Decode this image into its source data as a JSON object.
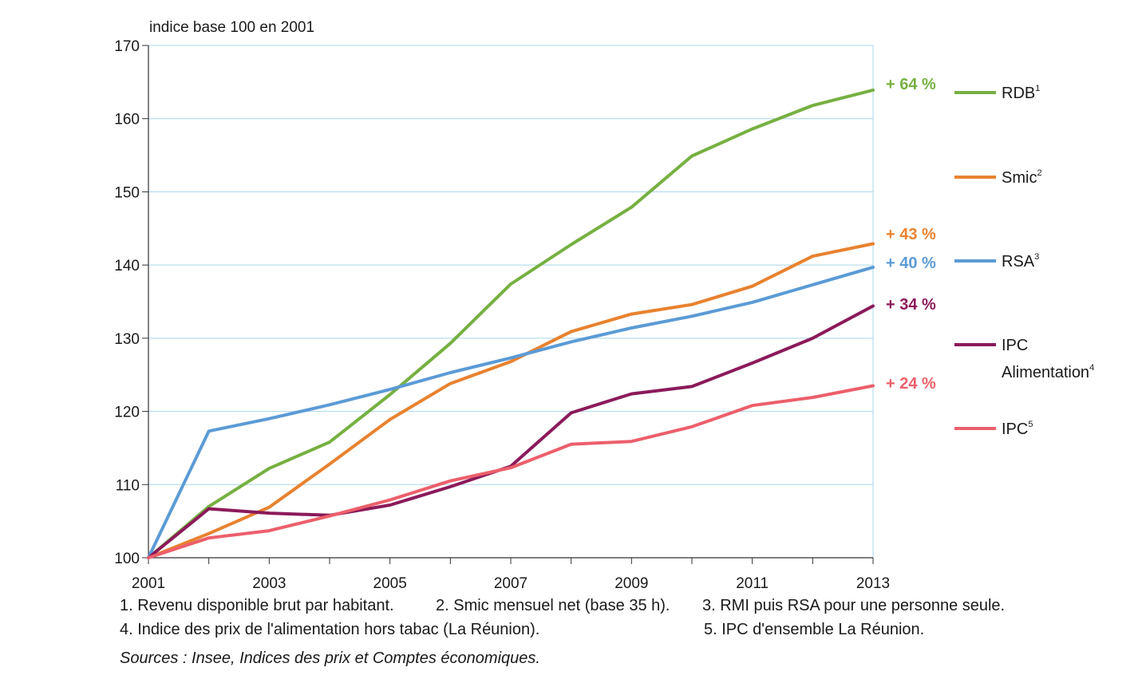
{
  "chart_data": {
    "type": "line",
    "y_unit_label": "indice base 100 en 2001",
    "x": [
      2001,
      2002,
      2003,
      2004,
      2005,
      2006,
      2007,
      2008,
      2009,
      2010,
      2011,
      2012,
      2013
    ],
    "x_tick_labels": [
      "2001",
      "2003",
      "2005",
      "2007",
      "2009",
      "2011",
      "2013"
    ],
    "y_tick_labels": [
      "100",
      "110",
      "120",
      "130",
      "140",
      "150",
      "160",
      "170"
    ],
    "xlim": [
      2001,
      2013
    ],
    "ylim": [
      100,
      170
    ],
    "grid": "horizontal",
    "legend_position": "right",
    "series": [
      {
        "name": "RDB",
        "note_ref": "1",
        "color": "#76b041",
        "end_label": "+ 64 %",
        "values": [
          100,
          107,
          112.2,
          115.8,
          122.3,
          129.3,
          137.4,
          142.8,
          147.9,
          154.9,
          158.6,
          161.8,
          163.9
        ]
      },
      {
        "name": "Smic",
        "note_ref": "2",
        "color": "#e8822f",
        "end_label": "+ 43 %",
        "values": [
          100,
          103.3,
          106.9,
          112.8,
          118.9,
          123.8,
          126.8,
          130.9,
          133.3,
          134.6,
          137.1,
          141.2,
          142.9
        ]
      },
      {
        "name": "RSA",
        "note_ref": "3",
        "color": "#5b9bd5",
        "end_label": "+ 40 %",
        "values": [
          100,
          117.3,
          119,
          120.9,
          123,
          125.3,
          127.3,
          129.5,
          131.4,
          133,
          134.9,
          137.3,
          139.7
        ]
      },
      {
        "name": "IPC Alimentation",
        "name_line1": "IPC",
        "name_line2": "Alimentation",
        "note_ref": "4",
        "color": "#8b1a5a",
        "end_label": "+ 34 %",
        "values": [
          100,
          106.7,
          106.1,
          105.8,
          107.2,
          109.7,
          112.5,
          119.8,
          122.4,
          123.4,
          126.6,
          130,
          134.4
        ]
      },
      {
        "name": "IPC",
        "note_ref": "5",
        "color": "#ec5f6b",
        "end_label": "+ 24 %",
        "values": [
          100,
          102.7,
          103.7,
          105.7,
          107.9,
          110.5,
          112.3,
          115.5,
          115.9,
          117.9,
          120.8,
          121.9,
          123.5
        ]
      }
    ]
  },
  "footnotes": {
    "n1": "1. Revenu disponible brut par habitant.",
    "n2": "2. Smic mensuel net (base 35 h).",
    "n3": "3. RMI puis RSA pour une personne seule.",
    "n4": "4. Indice des prix de l'alimentation hors tabac (La Réunion).",
    "n5": "5. IPC d'ensemble La Réunion."
  },
  "source": "Sources : Insee, Indices des prix et Comptes économiques."
}
